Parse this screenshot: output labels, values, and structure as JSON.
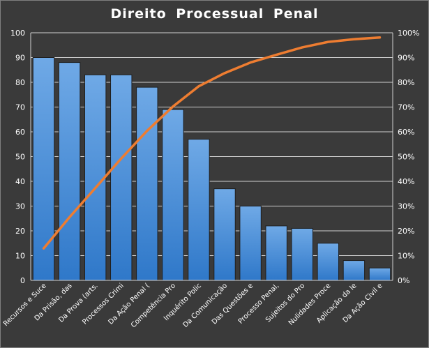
{
  "chart_data": {
    "type": "bar",
    "title": "Direito  Processual  Penal",
    "categories": [
      "Recursos e Suce",
      "Da Prisão, das",
      "Da Prova (arts.",
      "Processos Crimi",
      "Da Ação Penal (",
      "Competência Pro",
      "Inquérito Polic",
      "Da Comunicação",
      "Das Questões e",
      "Processo Penal,",
      "Sujeitos do Pro",
      "Nulidades Proce",
      "Aplicação da le",
      "Da Ação Civil e"
    ],
    "series": [
      {
        "type": "bar",
        "values": [
          90,
          88,
          83,
          83,
          78,
          69,
          57,
          37,
          30,
          22,
          21,
          15,
          8,
          5
        ],
        "color": "#4a8fd8"
      },
      {
        "type": "line",
        "axis": "right",
        "values": [
          12.9,
          25.5,
          37.3,
          49.2,
          60.4,
          70.2,
          78.4,
          83.7,
          88.0,
          91.1,
          94.1,
          96.3,
          97.4,
          98.1
        ],
        "color": "#ee7d31"
      }
    ],
    "ylim": [
      0,
      100
    ],
    "yticks": [
      0,
      10,
      20,
      30,
      40,
      50,
      60,
      70,
      80,
      90,
      100
    ],
    "y2lim": [
      0,
      100
    ],
    "y2ticks": [
      "0%",
      "10%",
      "20%",
      "30%",
      "40%",
      "50%",
      "60%",
      "70%",
      "80%",
      "90%",
      "100%"
    ],
    "grid": true,
    "legend": "none"
  }
}
